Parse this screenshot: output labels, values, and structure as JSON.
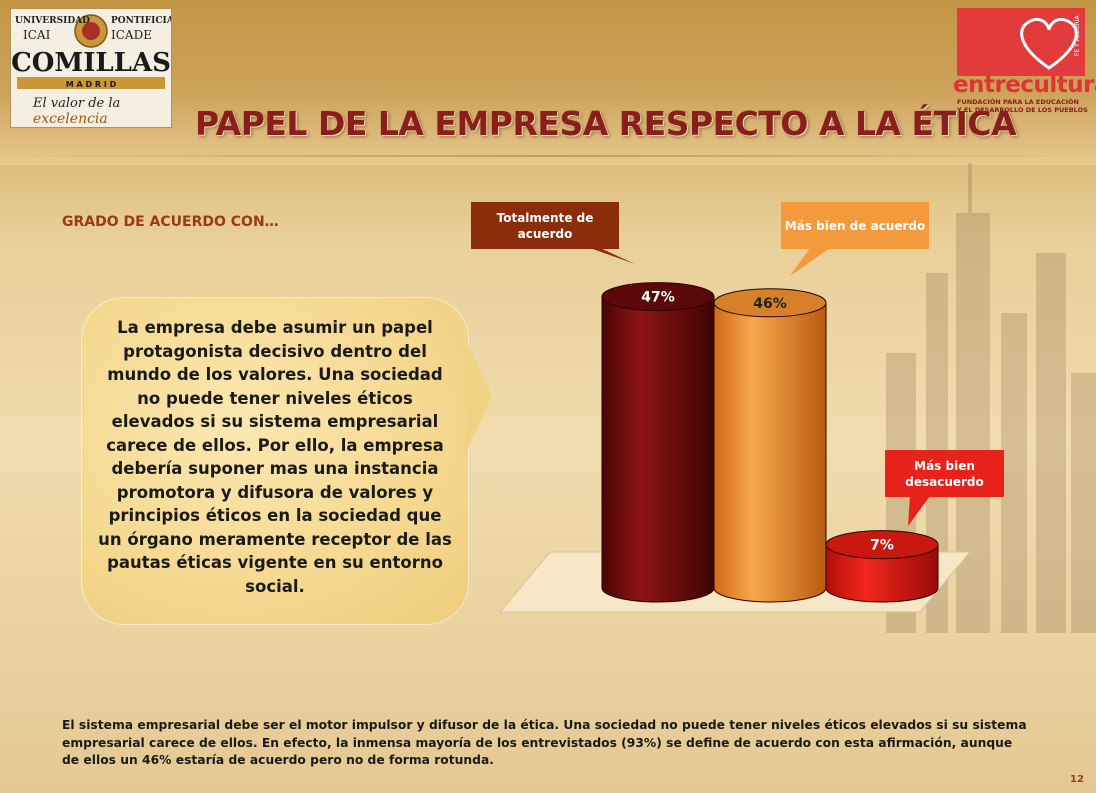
{
  "logos": {
    "left": {
      "line1_left": "UNIVERSIDAD",
      "line1_right": "PONTIFICIA",
      "line2_left": "ICAI",
      "line2_right": "ICADE",
      "name": "COMILLAS",
      "city": "M A D R I D",
      "slogan1": "El valor de la",
      "slogan2": "excelencia"
    },
    "right": {
      "name": "entreculturas",
      "tag": "FE Y ALEGRÍA",
      "sub1": "FUNDACIÓN PARA LA EDUCACIÓN",
      "sub2": "Y EL DESARROLLO DE LOS PUEBLOS"
    }
  },
  "title": "PAPEL DE LA EMPRESA RESPECTO A LA ÉTICA",
  "subtitle": "GRADO DE ACUERDO CON…",
  "statement": "La empresa debe asumir un papel protagonista decisivo dentro del mundo de los valores. Una sociedad no puede tener niveles éticos elevados si su sistema empresarial carece de ellos. Por ello, la empresa debería suponer mas una instancia promotora y difusora de valores y principios éticos en la sociedad que un órgano meramente receptor de las pautas éticas vigente en su entorno social.",
  "footer": "El sistema empresarial debe ser el motor impulsor y difusor de la ética. Una sociedad no puede tener niveles éticos elevados si su sistema empresarial carece de ellos. En efecto, la inmensa mayoría de los entrevistados (93%) se define de acuerdo con esta afirmación, aunque de ellos un 46% estaría de acuerdo pero no de forma rotunda.",
  "page_number": "12",
  "colors": {
    "title": "#8b1d1d",
    "accent": "#9b3a12"
  },
  "chart_data": {
    "type": "bar",
    "style": "3d-cylinder",
    "categories": [
      "Totalmente de acuerdo",
      "Más bien de acuerdo",
      "Más bien desacuerdo"
    ],
    "values": [
      47,
      46,
      7
    ],
    "value_labels": [
      "47%",
      "46%",
      "7%"
    ],
    "unit": "%",
    "ylim": [
      0,
      50
    ],
    "colors": [
      "#7a0d0d",
      "#f0902e",
      "#e11d14"
    ],
    "callout_colors": [
      "#8b2d0b",
      "#f39a3c",
      "#e6221b"
    ],
    "grid": false,
    "legend": "callouts"
  }
}
